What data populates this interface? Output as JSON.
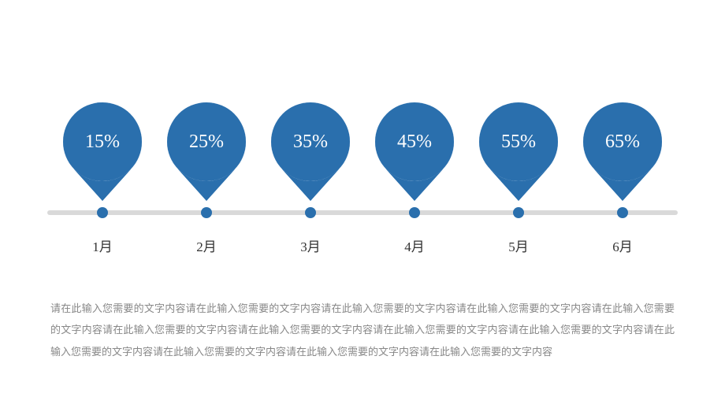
{
  "timeline": {
    "bar_color": "#d9d9d9",
    "dot_color": "#2a6fad",
    "pin_color": "#2a6fad",
    "pin_label_color": "#ffffff",
    "pin_label_fontsize": 24,
    "month_color": "#333333",
    "month_fontsize": 17,
    "items": [
      {
        "value": "15%",
        "month": "1月"
      },
      {
        "value": "25%",
        "month": "2月"
      },
      {
        "value": "35%",
        "month": "3月"
      },
      {
        "value": "45%",
        "month": "4月"
      },
      {
        "value": "55%",
        "month": "5月"
      },
      {
        "value": "65%",
        "month": "6月"
      }
    ]
  },
  "description": {
    "text": "请在此输入您需要的文字内容请在此输入您需要的文字内容请在此输入您需要的文字内容请在此输入您需要的文字内容请在此输入您需要的文字内容请在此输入您需要的文字内容请在此输入您需要的文字内容请在此输入您需要的文字内容请在此输入您需要的文字内容请在此输入您需要的文字内容请在此输入您需要的文字内容请在此输入您需要的文字内容请在此输入您需要的文字内容",
    "color": "#888888",
    "fontsize": 13
  },
  "background_color": "#ffffff"
}
